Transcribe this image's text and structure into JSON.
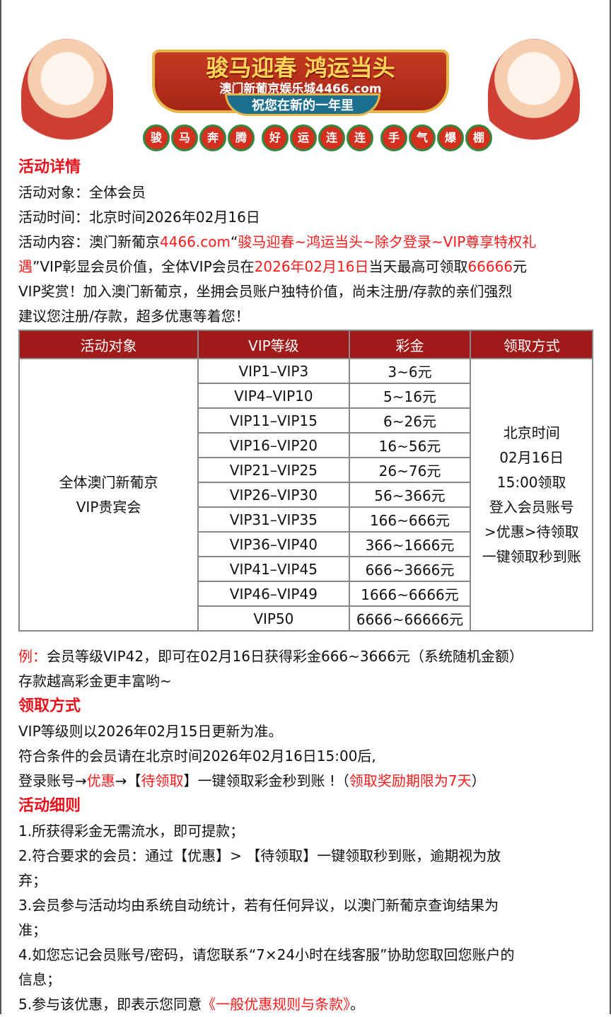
{
  "banner": {
    "title": "骏马迎春 鸿运当头",
    "subtitle": "澳门新葡京娱乐城4466.com",
    "ribbon": "祝您在新的一年里",
    "chips": [
      "骏",
      "马",
      "奔",
      "腾",
      "好",
      "运",
      "连",
      "连",
      "手",
      "气",
      "爆",
      "棚"
    ]
  },
  "colors": {
    "accent": "#e8101a",
    "table_header": "#a01a1a"
  },
  "details": {
    "heading": "活动详情",
    "target": "活动对象：全体会员",
    "time": "活动时间：北京时间2026年02月16日",
    "content": [
      [
        {
          "t": "活动内容：澳门新葡京"
        },
        {
          "t": "4466.com",
          "red": true
        },
        {
          "t": "“"
        },
        {
          "t": "骏马迎春~鸿运当头~除夕登录~VIP尊享特权礼",
          "red": true
        }
      ],
      [
        {
          "t": "遇",
          "red": true
        },
        {
          "t": "”VIP彰显会员价值，全体VIP会员在"
        },
        {
          "t": "2026年02月16日",
          "red": true
        },
        {
          "t": "当天最高可领取"
        },
        {
          "t": "66666",
          "red": true
        },
        {
          "t": "元"
        }
      ],
      [
        {
          "t": "VIP奖赏！加入澳门新葡京，坐拥会员账户独特价值，尚未注册/存款的亲们强烈"
        }
      ],
      [
        {
          "t": "建议您注册/存款，超多优惠等着您！"
        }
      ]
    ]
  },
  "table": {
    "headers": [
      "活动对象",
      "VIP等级",
      "彩金",
      "领取方式"
    ],
    "target_lines": [
      "全体澳门新葡京",
      "VIP贵宾会"
    ],
    "rows": [
      [
        "VIP1–VIP3",
        "3~6元"
      ],
      [
        "VIP4–VIP10",
        "5~16元"
      ],
      [
        "VIP11–VIP15",
        "6~26元"
      ],
      [
        "VIP16–VIP20",
        "16~56元"
      ],
      [
        "VIP21–VIP25",
        "26~76元"
      ],
      [
        "VIP26–VIP30",
        "56~366元"
      ],
      [
        "VIP31–VIP35",
        "166~666元"
      ],
      [
        "VIP36–VIP40",
        "366~1666元"
      ],
      [
        "VIP41–VIP45",
        "666~3666元"
      ],
      [
        "VIP46–VIP49",
        "1666~6666元"
      ],
      [
        "VIP50",
        "6666~66666元"
      ]
    ],
    "method_lines": [
      "北京时间",
      "02月16日",
      "15:00领取",
      "登入会员账号",
      ">优惠>待领取",
      "一键领取秒到账"
    ]
  },
  "example": [
    [
      {
        "t": "例：",
        "red": true
      },
      {
        "t": "会员等级VIP42，即可在02月16日获得彩金666~3666元（系统随机金额）"
      }
    ],
    [
      {
        "t": "存款越高彩金更丰富哟~"
      }
    ]
  ],
  "claim": {
    "heading": "领取方式",
    "lines": [
      [
        {
          "t": "VIP等级则以2026年02月15日更新为准。"
        }
      ],
      [
        {
          "t": "符合条件的会员请在北京时间2026年02月16日15:00后,"
        }
      ],
      [
        {
          "t": "登录账号→"
        },
        {
          "t": "优惠",
          "red": true
        },
        {
          "t": "→【"
        },
        {
          "t": "待领取",
          "red": true
        },
        {
          "t": "】一键领取彩金秒到账 !（"
        },
        {
          "t": "领取奖励期限为7天",
          "red": true
        },
        {
          "t": "）"
        }
      ]
    ]
  },
  "rules": {
    "heading": "活动细则",
    "lines": [
      [
        {
          "t": "1.所获得彩金无需流水，即可提款；"
        }
      ],
      [
        {
          "t": "2.符合要求的会员：通过【优惠】> 【待领取】一键领取秒到账，逾期视为放"
        }
      ],
      [
        {
          "t": "弃；"
        }
      ],
      [
        {
          "t": "3.会员参与活动均由系统自动统计，若有任何异议，以澳门新葡京查询结果为"
        }
      ],
      [
        {
          "t": "准；"
        }
      ],
      [
        {
          "t": "4.如您忘记会员账号/密码，请您联系“7×24小时在线客服”协助您取回您账户的"
        }
      ],
      [
        {
          "t": "信息；"
        }
      ],
      [
        {
          "t": "5.参与该优惠，即表示您同意"
        },
        {
          "t": "《一般优惠规则与条款》",
          "red": true,
          "link": true
        },
        {
          "t": "。"
        }
      ]
    ]
  }
}
